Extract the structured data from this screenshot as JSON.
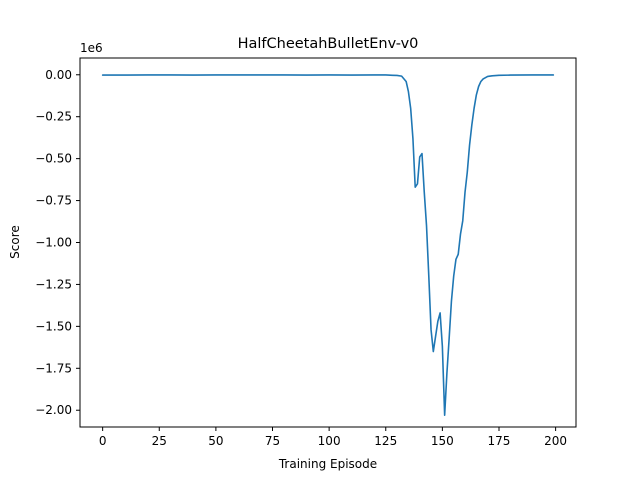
{
  "chart_data": {
    "type": "line",
    "title": "HalfCheetahBulletEnv-v0",
    "xlabel": "Training Episode",
    "ylabel": "Score",
    "y_scale_label": "1e6",
    "x_ticks": [
      0,
      25,
      50,
      75,
      100,
      125,
      150,
      175,
      200
    ],
    "y_ticks": [
      0.0,
      -0.25,
      -0.5,
      -0.75,
      -1.0,
      -1.25,
      -1.5,
      -1.75,
      -2.0
    ],
    "y_tick_labels": [
      "0.00",
      "−0.25",
      "−0.50",
      "−0.75",
      "−1.00",
      "−1.25",
      "−1.50",
      "−1.75",
      "−2.00"
    ],
    "xlim": [
      -10,
      209
    ],
    "ylim": [
      -2.1,
      0.1
    ],
    "grid": false,
    "legend": "none",
    "series": [
      {
        "color": "#1f77b4",
        "x": [
          0,
          10,
          20,
          30,
          40,
          50,
          60,
          70,
          80,
          90,
          100,
          110,
          120,
          125,
          128,
          130,
          132,
          134,
          135,
          136,
          137,
          138,
          139,
          140,
          141,
          142,
          143,
          144,
          145,
          146,
          147,
          148,
          149,
          150,
          151,
          152,
          153,
          154,
          155,
          156,
          157,
          158,
          159,
          160,
          161,
          162,
          163,
          164,
          165,
          166,
          167,
          168,
          170,
          172,
          175,
          180,
          190,
          199
        ],
        "values": [
          -0.002,
          -0.002,
          -0.001,
          -0.001,
          -0.002,
          -0.001,
          -0.001,
          -0.001,
          -0.001,
          -0.002,
          -0.001,
          -0.002,
          -0.001,
          -0.001,
          -0.003,
          -0.004,
          -0.008,
          -0.04,
          -0.1,
          -0.2,
          -0.38,
          -0.67,
          -0.65,
          -0.49,
          -0.47,
          -0.7,
          -0.9,
          -1.2,
          -1.52,
          -1.65,
          -1.56,
          -1.47,
          -1.42,
          -1.62,
          -2.03,
          -1.78,
          -1.57,
          -1.35,
          -1.2,
          -1.1,
          -1.07,
          -0.95,
          -0.87,
          -0.7,
          -0.58,
          -0.42,
          -0.3,
          -0.2,
          -0.12,
          -0.07,
          -0.04,
          -0.025,
          -0.01,
          -0.006,
          -0.003,
          -0.002,
          -0.001,
          -0.001
        ]
      }
    ]
  }
}
